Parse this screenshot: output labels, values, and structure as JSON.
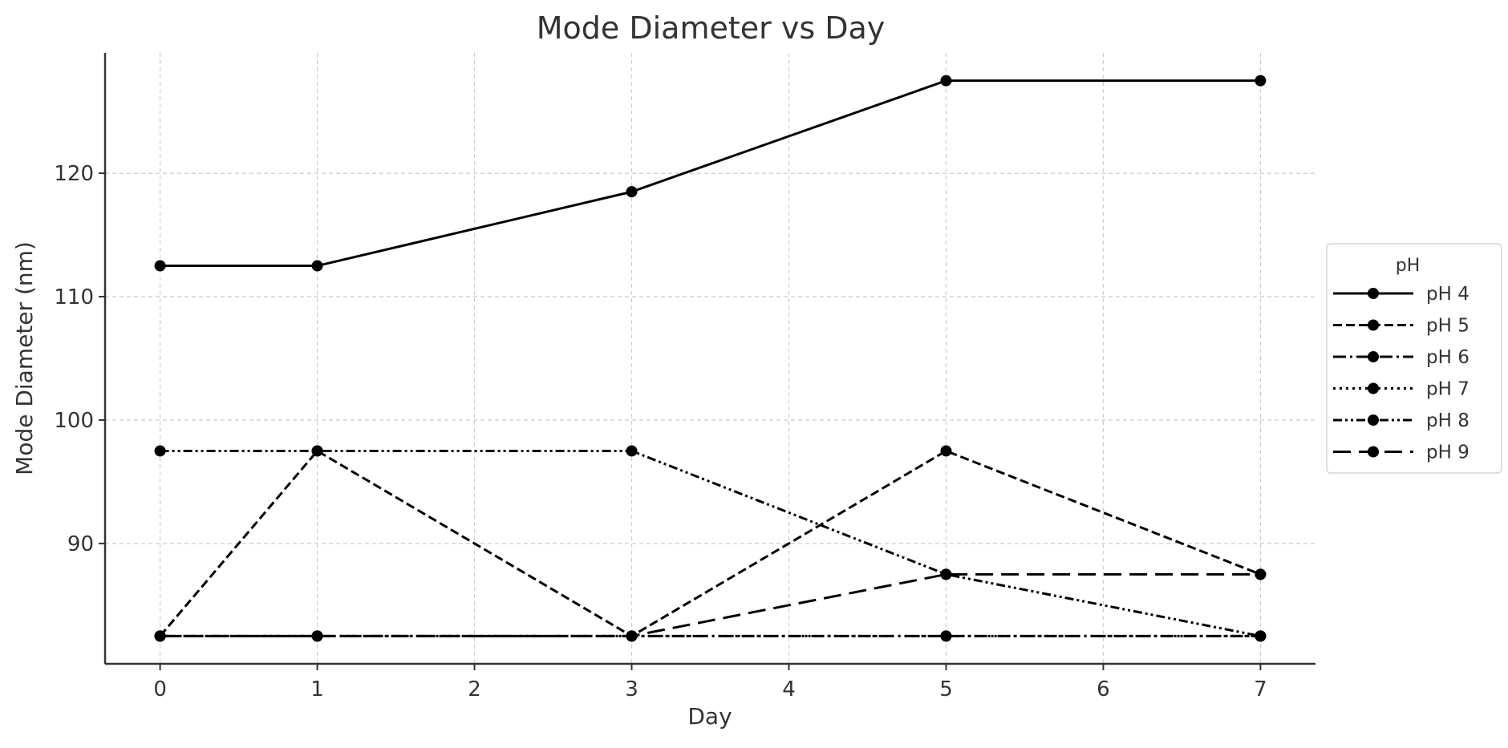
{
  "chart_data": {
    "type": "line",
    "title": "Mode Diameter vs Day",
    "xlabel": "Day",
    "ylabel": "Mode Diameter (nm)",
    "x": [
      0,
      1,
      3,
      5,
      7
    ],
    "xlim": [
      -0.35,
      7.35
    ],
    "ylim": [
      80.25,
      129.75
    ],
    "xticks": [
      "0",
      "1",
      "2",
      "3",
      "4",
      "5",
      "6",
      "7"
    ],
    "yticks": [
      "90",
      "100",
      "110",
      "120"
    ],
    "grid": true,
    "legend": {
      "title": "pH",
      "placement": "right-outside"
    },
    "series": [
      {
        "name": "pH 4",
        "style": "solid",
        "values": [
          112.5,
          112.5,
          118.5,
          127.5,
          127.5
        ]
      },
      {
        "name": "pH 5",
        "style": "dashed",
        "values": [
          82.5,
          97.5,
          82.5,
          97.5,
          87.5
        ]
      },
      {
        "name": "pH 6",
        "style": "dashdot",
        "values": [
          82.5,
          82.5,
          82.5,
          82.5,
          82.5
        ]
      },
      {
        "name": "pH 7",
        "style": "dotted",
        "values": [
          82.5,
          82.5,
          82.5,
          82.5,
          82.5
        ]
      },
      {
        "name": "pH 8",
        "style": "dashdotdot",
        "values": [
          97.5,
          97.5,
          97.5,
          87.5,
          82.5
        ]
      },
      {
        "name": "pH 9",
        "style": "longdash",
        "values": [
          82.5,
          82.5,
          82.5,
          87.5,
          87.5
        ]
      }
    ],
    "colors": {
      "line": "#000000",
      "grid": "#cccccc",
      "text": "#333333"
    }
  }
}
